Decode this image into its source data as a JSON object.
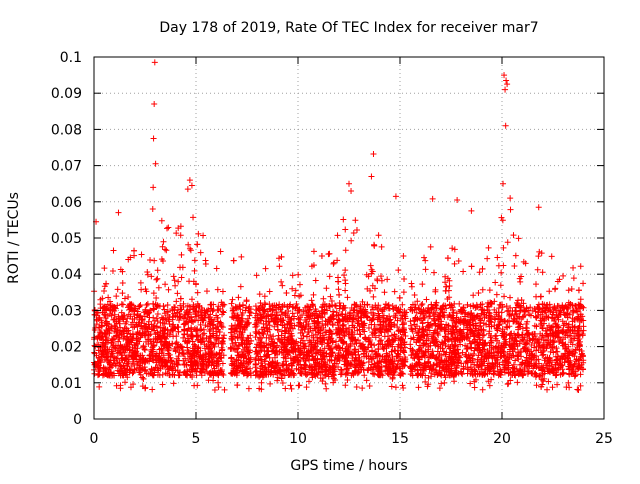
{
  "chart_data": {
    "type": "scatter",
    "title": "Day 178 of 2019, Rate Of TEC Index for receiver mar7",
    "xlabel": "GPS time / hours",
    "ylabel": "ROTI / TECUs",
    "xlim": [
      0,
      25
    ],
    "ylim": [
      0,
      0.1
    ],
    "x_ticks": [
      0,
      5,
      10,
      15,
      20,
      25
    ],
    "x_tick_labels": [
      "0",
      "5",
      "10",
      "15",
      "20",
      "25"
    ],
    "y_ticks": [
      0,
      0.01,
      0.02,
      0.03,
      0.04,
      0.05,
      0.06,
      0.07,
      0.08,
      0.09,
      0.1
    ],
    "y_tick_labels": [
      "0",
      "0.01",
      "0.02",
      "0.03",
      "0.04",
      "0.05",
      "0.06",
      "0.07",
      "0.08",
      "0.09",
      "0.1"
    ],
    "grid": true,
    "marker": "+",
    "series": [
      {
        "name": "ROTI",
        "color": "#ff0000",
        "data_span_hours": [
          0,
          24
        ],
        "data_gaps_hours": [
          [
            6.4,
            6.7
          ],
          [
            7.7,
            7.9
          ],
          [
            15.3,
            15.5
          ],
          [
            24.0,
            25.0
          ]
        ],
        "typical_band": [
          0.008,
          0.045
        ],
        "notable_points": [
          {
            "x": 2.98,
            "y": 0.0985
          },
          {
            "x": 2.95,
            "y": 0.087
          },
          {
            "x": 2.92,
            "y": 0.0775
          },
          {
            "x": 3.02,
            "y": 0.0705
          },
          {
            "x": 2.9,
            "y": 0.064
          },
          {
            "x": 2.88,
            "y": 0.058
          },
          {
            "x": 4.7,
            "y": 0.066
          },
          {
            "x": 4.8,
            "y": 0.0645
          },
          {
            "x": 4.6,
            "y": 0.0635
          },
          {
            "x": 13.7,
            "y": 0.0732
          },
          {
            "x": 13.6,
            "y": 0.067
          },
          {
            "x": 12.5,
            "y": 0.065
          },
          {
            "x": 12.6,
            "y": 0.063
          },
          {
            "x": 20.1,
            "y": 0.095
          },
          {
            "x": 20.2,
            "y": 0.0935
          },
          {
            "x": 20.15,
            "y": 0.091
          },
          {
            "x": 20.25,
            "y": 0.0925
          },
          {
            "x": 20.18,
            "y": 0.081
          },
          {
            "x": 20.05,
            "y": 0.065
          },
          {
            "x": 20.4,
            "y": 0.061
          },
          {
            "x": 16.6,
            "y": 0.0608
          },
          {
            "x": 17.8,
            "y": 0.0605
          },
          {
            "x": 14.8,
            "y": 0.0615
          },
          {
            "x": 0.1,
            "y": 0.0545
          },
          {
            "x": 1.2,
            "y": 0.057
          },
          {
            "x": 18.5,
            "y": 0.0575
          },
          {
            "x": 21.8,
            "y": 0.0585
          }
        ]
      }
    ]
  }
}
